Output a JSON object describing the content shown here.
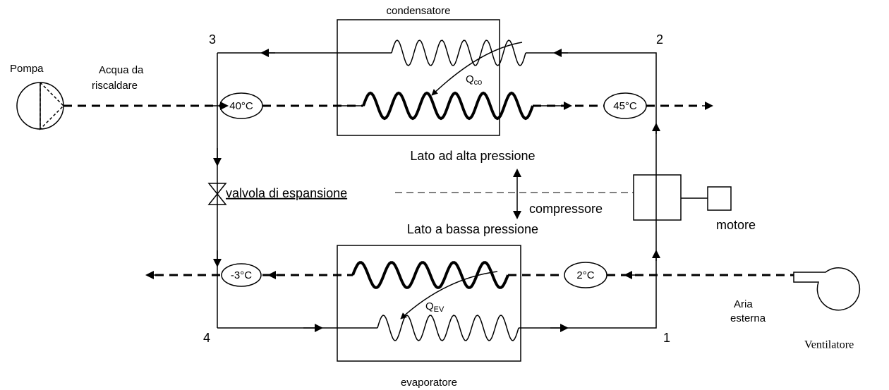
{
  "components": {
    "condenser": "condensatore",
    "evaporator": "evaporatore",
    "pump": "Pompa",
    "valve": "valvola di espansione",
    "compressor": "compressore",
    "motor": "motore",
    "fan": "Ventilatore"
  },
  "points": [
    "1",
    "2",
    "3",
    "4"
  ],
  "water_inlet": [
    "Acqua da",
    "riscaldare"
  ],
  "air_inlet": [
    "Aria",
    "esterna"
  ],
  "temperatures": {
    "water_in": "40°C",
    "water_out": "45°C",
    "air_in": "2°C",
    "air_out": "-3°C"
  },
  "heat": {
    "condenser": {
      "symbol": "Q",
      "subscript": "co"
    },
    "evaporator": {
      "symbol": "Q",
      "subscript": "EV"
    }
  },
  "sides": {
    "high": "Lato ad alta pressione",
    "low": "Lato a bassa pressione"
  }
}
